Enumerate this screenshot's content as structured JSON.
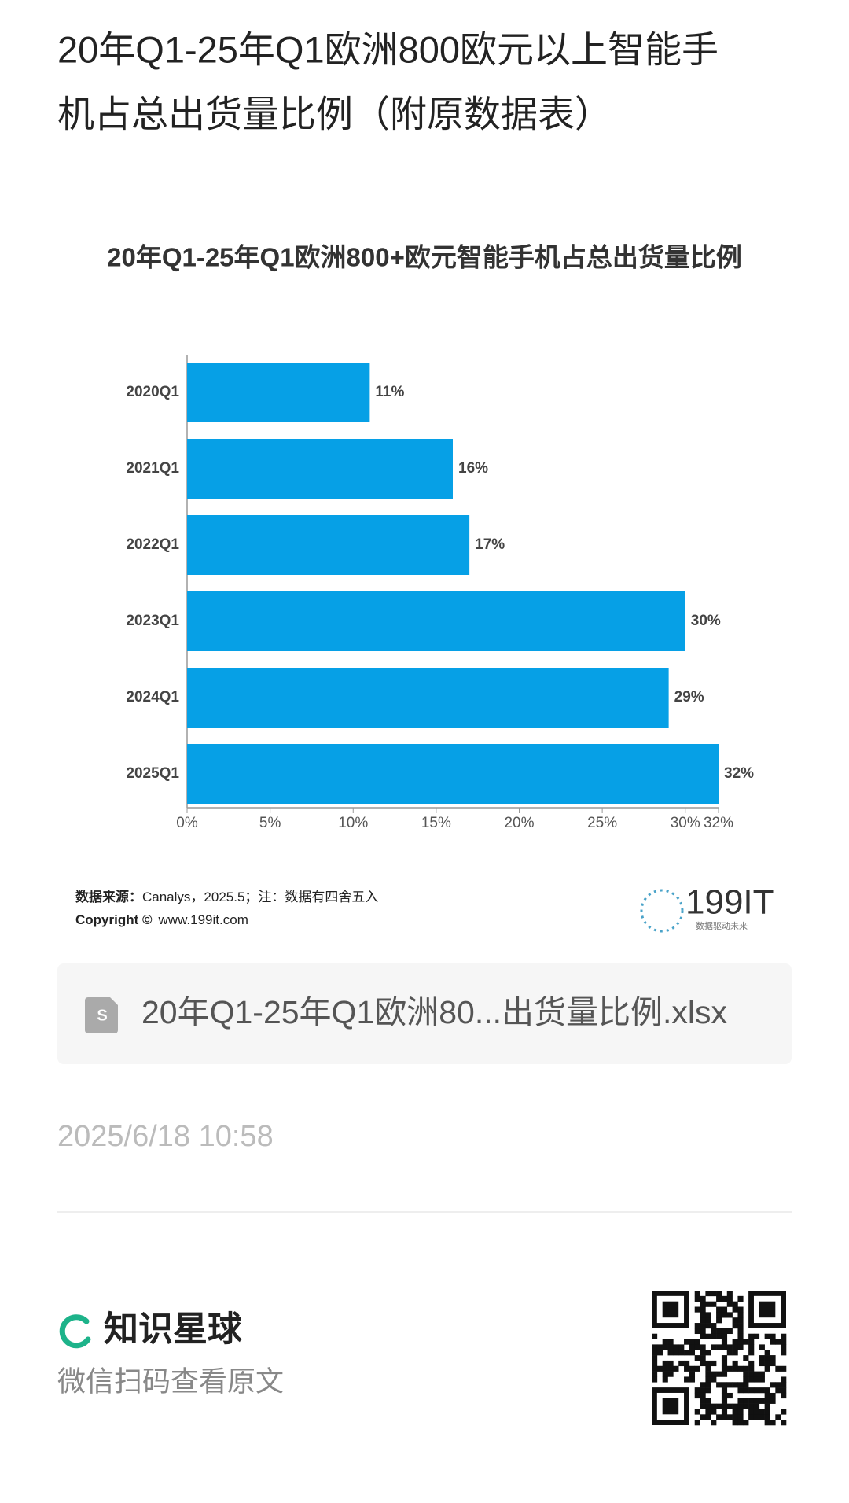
{
  "header": {
    "title_line1": "20年Q1-25年Q1欧洲800欧元以上智能手",
    "title_line2": "机占总出货量比例（附原数据表）"
  },
  "chart_data": {
    "type": "hbar",
    "title": "20年Q1-25年Q1欧洲800+欧元智能手机占总出货量比例",
    "categories": [
      "2020Q1",
      "2021Q1",
      "2022Q1",
      "2023Q1",
      "2024Q1",
      "2025Q1"
    ],
    "values": [
      11,
      16,
      17,
      30,
      29,
      32
    ],
    "value_labels": [
      "11%",
      "16%",
      "17%",
      "30%",
      "29%",
      "32%"
    ],
    "color": "#06a0e6",
    "xlim": [
      0,
      32
    ],
    "xticks": [
      {
        "value": 0,
        "label": "0%"
      },
      {
        "value": 5,
        "label": "5%"
      },
      {
        "value": 10,
        "label": "10%"
      },
      {
        "value": 15,
        "label": "15%"
      },
      {
        "value": 20,
        "label": "20%"
      },
      {
        "value": 25,
        "label": "25%"
      },
      {
        "value": 30,
        "label": "30%"
      },
      {
        "value": 32,
        "label": "32%"
      }
    ]
  },
  "chart_footer": {
    "source_label": "数据来源：",
    "source": "Canalys，2025.5；注：数据有四舍五入",
    "copyright": "Copyright ©",
    "website": "www.199it.com",
    "logo": "199IT",
    "slogan": "数据驱动未来"
  },
  "attachment": {
    "name": "20年Q1-25年Q1欧洲80...出货量比例.xlsx"
  },
  "timestamp": "2025/6/18 10:58",
  "footer": {
    "brand": "知识星球",
    "hint": "微信扫码查看原文"
  }
}
